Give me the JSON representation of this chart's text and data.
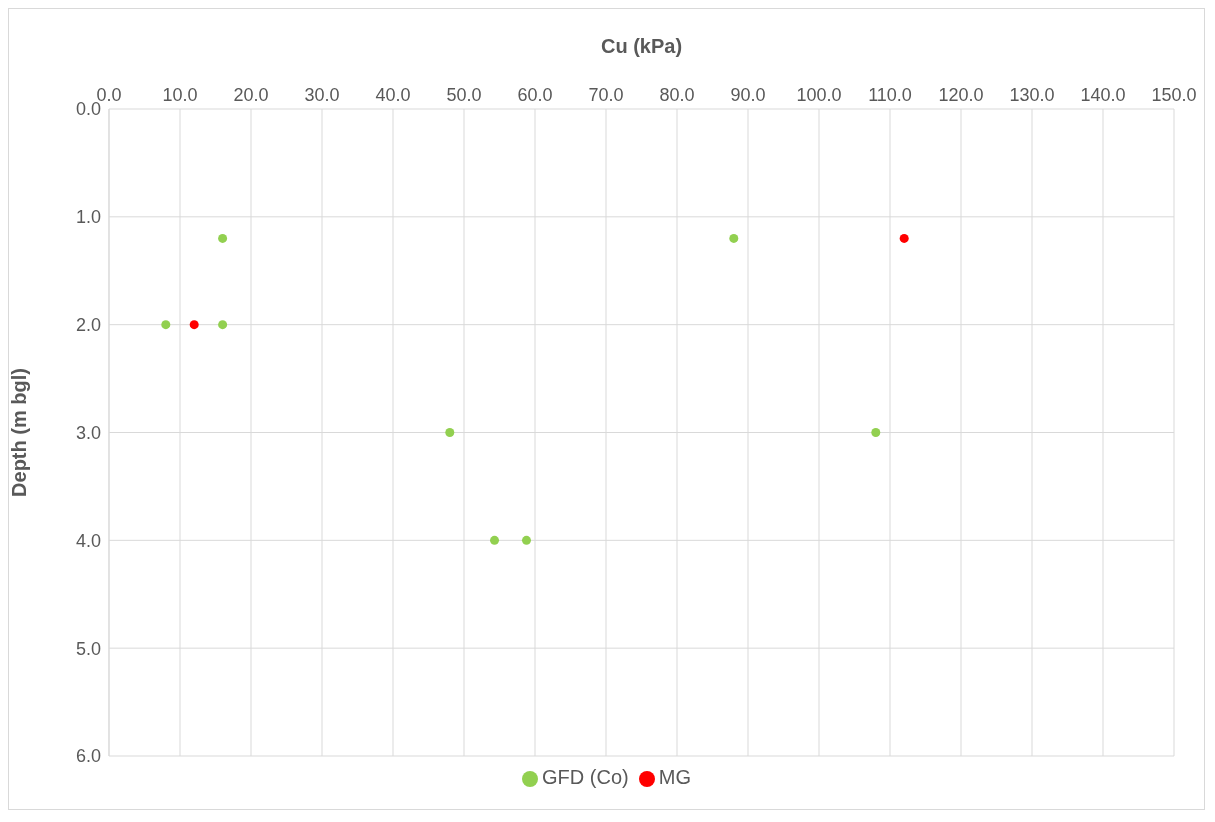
{
  "chart_data": {
    "type": "scatter",
    "xlabel": "Cu (kPa)",
    "ylabel": "Depth (m bgl)",
    "xlim": [
      0,
      150
    ],
    "xticks": [
      {
        "value": 0,
        "label": "0.0"
      },
      {
        "value": 10,
        "label": "10.0"
      },
      {
        "value": 20,
        "label": "20.0"
      },
      {
        "value": 30,
        "label": "30.0"
      },
      {
        "value": 40,
        "label": "40.0"
      },
      {
        "value": 50,
        "label": "50.0"
      },
      {
        "value": 60,
        "label": "60.0"
      },
      {
        "value": 70,
        "label": "70.0"
      },
      {
        "value": 80,
        "label": "80.0"
      },
      {
        "value": 90,
        "label": "90.0"
      },
      {
        "value": 100,
        "label": "100.0"
      },
      {
        "value": 110,
        "label": "110.0"
      },
      {
        "value": 120,
        "label": "120.0"
      },
      {
        "value": 130,
        "label": "130.0"
      },
      {
        "value": 140,
        "label": "140.0"
      },
      {
        "value": 150,
        "label": "150.0"
      }
    ],
    "ylim": [
      6,
      0
    ],
    "yticks": [
      {
        "value": 0,
        "label": "0.0"
      },
      {
        "value": 1,
        "label": "1.0"
      },
      {
        "value": 2,
        "label": "2.0"
      },
      {
        "value": 3,
        "label": "3.0"
      },
      {
        "value": 4,
        "label": "4.0"
      },
      {
        "value": 5,
        "label": "5.0"
      },
      {
        "value": 6,
        "label": "6.0"
      }
    ],
    "grid": true,
    "legend": "bottom",
    "marker": "circle",
    "series": [
      {
        "name": "MG",
        "color": "#ff0000",
        "x": [
          12,
          112
        ],
        "values": [
          2.0,
          1.2
        ]
      },
      {
        "name": "GFD (Co)",
        "color": "#92d050",
        "x": [
          16,
          8,
          16,
          48,
          54.3,
          58.8,
          88,
          108
        ],
        "values": [
          1.2,
          2.0,
          2.0,
          3.0,
          4.0,
          4.0,
          1.2,
          3.0
        ]
      }
    ]
  }
}
